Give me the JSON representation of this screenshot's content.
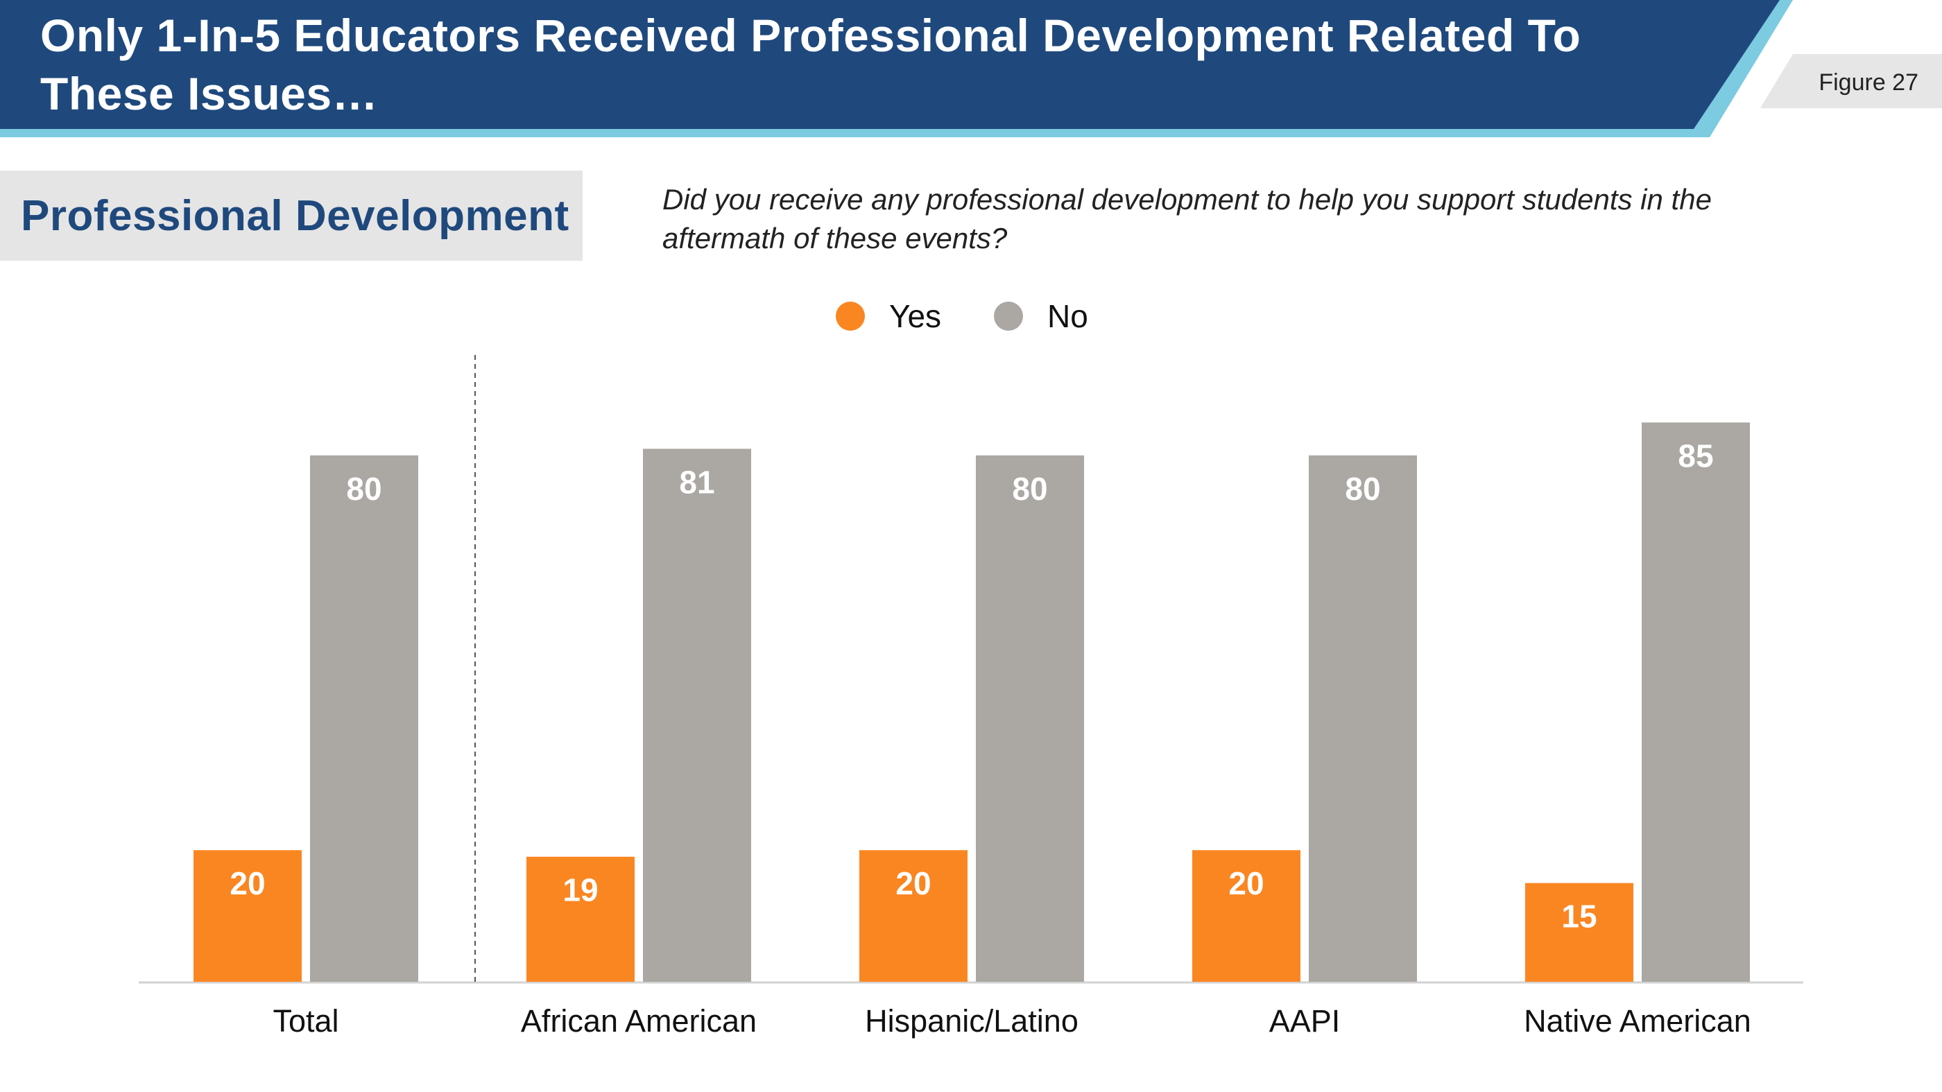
{
  "header": {
    "title_line_1": "Only 1-In-5 Educators Received Professional Development Related To",
    "title_line_2": "These Issues…",
    "figure_label": "Figure 27"
  },
  "section": {
    "label": "Professional Development"
  },
  "question": {
    "line_1": "Did you receive any professional development to help you support students in the",
    "line_2": "aftermath of these events?"
  },
  "colors": {
    "banner": "#1f497d",
    "banner_accent": "#7ccbe0",
    "yes": "#fa8622",
    "no": "#aba7a2"
  },
  "chart_data": {
    "type": "bar",
    "categories": [
      "Total",
      "African American",
      "Hispanic/Latino",
      "AAPI",
      "Native American"
    ],
    "series": [
      {
        "name": "Yes",
        "values": [
          20,
          19,
          20,
          20,
          15
        ]
      },
      {
        "name": "No",
        "values": [
          80,
          81,
          80,
          80,
          85
        ]
      }
    ],
    "legend": [
      "Yes",
      "No"
    ],
    "legend_position": "top-center",
    "ylim": [
      0,
      100
    ],
    "grid": false,
    "separator_after_category": "Total"
  }
}
